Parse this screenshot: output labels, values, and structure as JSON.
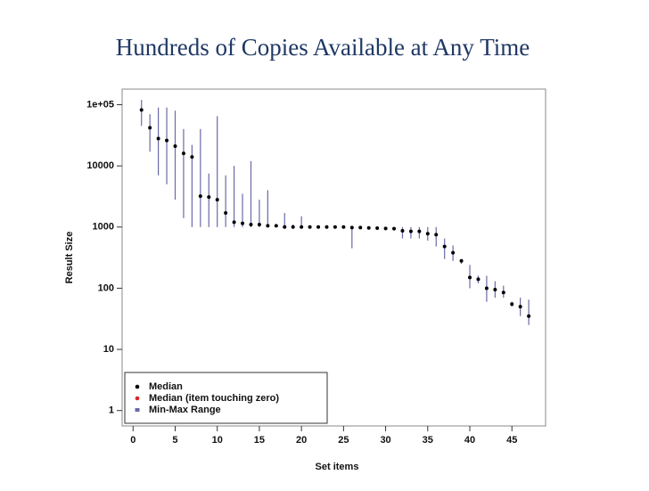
{
  "chart_data": {
    "type": "errorbar",
    "title": "Hundreds of Copies Available at Any Time",
    "xlabel": "Set items",
    "ylabel": "Result Size",
    "ylog": true,
    "legend": "lower left",
    "xlim": [
      -1.3,
      49
    ],
    "ylim": [
      0.56,
      180000
    ],
    "xticks": [
      0,
      5,
      10,
      15,
      20,
      25,
      30,
      35,
      40,
      45
    ],
    "yticks": [
      1,
      10,
      100,
      1000,
      10000,
      {
        "value": 100000,
        "label": "1e+05"
      }
    ],
    "x": [
      1,
      2,
      3,
      4,
      5,
      6,
      7,
      8,
      9,
      10,
      11,
      12,
      13,
      14,
      15,
      16,
      17,
      18,
      19,
      20,
      21,
      22,
      23,
      24,
      25,
      26,
      27,
      28,
      29,
      30,
      31,
      32,
      33,
      34,
      35,
      36,
      37,
      38,
      39,
      40,
      41,
      42,
      43,
      44,
      45,
      46,
      47
    ],
    "series": [
      {
        "name": "Median",
        "color": "#000000",
        "values": [
          82000,
          42000,
          28000,
          26000,
          21000,
          16000,
          14000,
          3200,
          3100,
          2800,
          1700,
          1200,
          1150,
          1100,
          1100,
          1050,
          1050,
          1000,
          1000,
          1000,
          1000,
          1000,
          1000,
          1000,
          1000,
          980,
          980,
          970,
          960,
          950,
          940,
          870,
          850,
          850,
          780,
          750,
          480,
          380,
          280,
          150,
          140,
          100,
          95,
          85,
          55,
          50,
          35
        ]
      },
      {
        "name": "Median (item touching zero)",
        "color": "#e02020",
        "values": [
          null,
          null,
          null,
          null,
          null,
          null,
          null,
          null,
          null,
          null,
          null,
          null,
          null,
          null,
          null,
          null,
          null,
          null,
          null,
          null,
          null,
          null,
          null,
          null,
          null,
          null,
          null,
          null,
          null,
          null,
          null,
          null,
          null,
          null,
          null,
          null,
          null,
          null,
          null,
          null,
          null,
          null,
          null,
          null,
          null,
          null,
          null
        ]
      },
      {
        "name": "Min-Max Range",
        "color": "#6a6aa8",
        "low": [
          45000,
          17000,
          7000,
          5000,
          2800,
          1400,
          1000,
          1000,
          1000,
          1000,
          1000,
          1000,
          1000,
          1000,
          1000,
          1000,
          1000,
          1000,
          1000,
          1000,
          1000,
          1000,
          1000,
          1000,
          1000,
          450,
          940,
          930,
          920,
          910,
          900,
          650,
          650,
          650,
          600,
          480,
          300,
          280,
          250,
          100,
          120,
          60,
          70,
          70,
          50,
          35,
          25
        ],
        "high": [
          120000,
          70000,
          90000,
          90000,
          80000,
          40000,
          22000,
          40000,
          7500,
          65000,
          7000,
          10000,
          3500,
          12000,
          2800,
          4000,
          1100,
          1700,
          1100,
          1500,
          1000,
          1000,
          1000,
          1000,
          1000,
          1000,
          1000,
          1000,
          1000,
          1000,
          1000,
          1000,
          1000,
          1000,
          1000,
          1000,
          650,
          500,
          300,
          240,
          160,
          160,
          130,
          110,
          60,
          70,
          65
        ]
      }
    ]
  }
}
